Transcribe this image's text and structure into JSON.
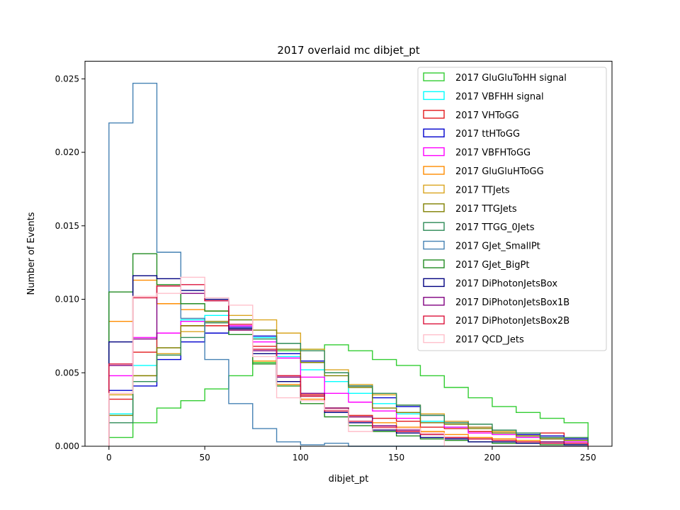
{
  "chart_data": {
    "type": "histogram-step",
    "title": "2017 overlaid mc dibjet_pt",
    "xlabel": "dibjet_pt",
    "ylabel": "Number of Events",
    "xlim": [
      -12.5,
      262.5
    ],
    "ylim": [
      0,
      0.0262
    ],
    "xticks": [
      0,
      50,
      100,
      150,
      200,
      250
    ],
    "yticks": [
      0.0,
      0.005,
      0.01,
      0.015,
      0.02,
      0.025
    ],
    "ytick_labels": [
      "0.000",
      "0.005",
      "0.010",
      "0.015",
      "0.020",
      "0.025"
    ],
    "bin_edges": [
      0,
      12.5,
      25,
      37.5,
      50,
      62.5,
      75,
      87.5,
      100,
      112.5,
      125,
      137.5,
      150,
      162.5,
      175,
      187.5,
      200,
      212.5,
      225,
      237.5,
      250
    ],
    "legend_position": "upper right",
    "series": [
      {
        "name": "2017 GluGluToHH signal",
        "color": "#32cd32",
        "values": [
          0.0006,
          0.0016,
          0.0026,
          0.0031,
          0.0039,
          0.0048,
          0.0057,
          0.0065,
          0.0066,
          0.0069,
          0.0065,
          0.0059,
          0.0055,
          0.0048,
          0.004,
          0.0033,
          0.0027,
          0.0023,
          0.0019,
          0.0016
        ]
      },
      {
        "name": "2017 VBFHH signal",
        "color": "#00ffff",
        "values": [
          0.0022,
          0.0055,
          0.0077,
          0.0086,
          0.0089,
          0.0086,
          0.0074,
          0.0061,
          0.0052,
          0.0044,
          0.0036,
          0.0029,
          0.0022,
          0.0017,
          0.0013,
          0.001,
          0.0008,
          0.0006,
          0.0005,
          0.0004
        ]
      },
      {
        "name": "2017 VHToGG",
        "color": "#e31a1c",
        "values": [
          0.0032,
          0.0064,
          0.0077,
          0.0082,
          0.0082,
          0.008,
          0.0068,
          0.0048,
          0.0035,
          0.0026,
          0.0021,
          0.0019,
          0.0017,
          0.0013,
          0.0012,
          0.001,
          0.0009,
          0.0007,
          0.0009,
          0.0005
        ]
      },
      {
        "name": "2017 ttHToGG",
        "color": "#0000cd",
        "values": [
          0.0038,
          0.0041,
          0.0059,
          0.0071,
          0.0077,
          0.0081,
          0.0075,
          0.0063,
          0.0058,
          0.005,
          0.0041,
          0.0033,
          0.0027,
          0.0021,
          0.0017,
          0.0013,
          0.0011,
          0.0008,
          0.0007,
          0.0005
        ]
      },
      {
        "name": "2017 VBFHToGG",
        "color": "#ff00ff",
        "values": [
          0.0048,
          0.0074,
          0.0077,
          0.0085,
          0.0084,
          0.0082,
          0.0071,
          0.006,
          0.0047,
          0.0036,
          0.003,
          0.0024,
          0.0019,
          0.0016,
          0.0013,
          0.0009,
          0.0008,
          0.0006,
          0.0005,
          0.0003
        ]
      },
      {
        "name": "2017 GluGluHToGG",
        "color": "#ff8c00",
        "values": [
          0.0085,
          0.0113,
          0.0097,
          0.0093,
          0.0092,
          0.0079,
          0.0058,
          0.0042,
          0.0032,
          0.0026,
          0.002,
          0.0016,
          0.0013,
          0.001,
          0.0008,
          0.0006,
          0.0005,
          0.0004,
          0.0003,
          0.0002
        ]
      },
      {
        "name": "2017 TTJets",
        "color": "#daa520",
        "values": [
          0.0035,
          0.0048,
          0.0063,
          0.0078,
          0.0084,
          0.0089,
          0.0086,
          0.0077,
          0.0066,
          0.0052,
          0.0042,
          0.0035,
          0.0028,
          0.0022,
          0.0017,
          0.0013,
          0.001,
          0.0007,
          0.0006,
          0.0004
        ]
      },
      {
        "name": "2017 TTGJets",
        "color": "#808000",
        "values": [
          0.0021,
          0.0048,
          0.0067,
          0.0082,
          0.0085,
          0.0086,
          0.0079,
          0.0066,
          0.0057,
          0.0048,
          0.004,
          0.0026,
          0.0023,
          0.0016,
          0.0015,
          0.0012,
          0.0009,
          0.0007,
          0.0005,
          0.0004
        ]
      },
      {
        "name": "2017 TTGG_0Jets",
        "color": "#2e8b57",
        "values": [
          0.0016,
          0.0044,
          0.0062,
          0.0074,
          0.0084,
          0.008,
          0.0073,
          0.007,
          0.0065,
          0.005,
          0.0041,
          0.0036,
          0.0028,
          0.0021,
          0.0016,
          0.0015,
          0.0011,
          0.0009,
          0.0006,
          0.0006
        ]
      },
      {
        "name": "2017 GJet_SmallPt",
        "color": "#4682b4",
        "values": [
          0.022,
          0.0247,
          0.0132,
          0.0087,
          0.0059,
          0.0029,
          0.0012,
          0.0003,
          0.0001,
          0.0002,
          0.0,
          0.0,
          0.0,
          0.0,
          0.0,
          0.0,
          0.0,
          0.0,
          0.0,
          0.0
        ]
      },
      {
        "name": "2017 GJet_BigPt",
        "color": "#228b22",
        "values": [
          0.0105,
          0.0131,
          0.011,
          0.0097,
          0.0092,
          0.0076,
          0.0056,
          0.0041,
          0.0029,
          0.002,
          0.0014,
          0.001,
          0.0007,
          0.0005,
          0.0004,
          0.0003,
          0.0002,
          0.0002,
          0.0001,
          0.0001
        ]
      },
      {
        "name": "2017 DiPhotonJetsBox",
        "color": "#000080",
        "values": [
          0.0071,
          0.0116,
          0.0114,
          0.0106,
          0.01,
          0.008,
          0.0063,
          0.0044,
          0.0034,
          0.0023,
          0.0016,
          0.0011,
          0.0009,
          0.0006,
          0.0005,
          0.0003,
          0.0003,
          0.0002,
          0.0002,
          0.0001
        ]
      },
      {
        "name": "2017 DiPhotonJetsBox1B",
        "color": "#800080",
        "values": [
          0.0055,
          0.0073,
          0.0109,
          0.0104,
          0.0099,
          0.0079,
          0.0065,
          0.0047,
          0.0036,
          0.0026,
          0.002,
          0.0014,
          0.0011,
          0.0008,
          0.0006,
          0.0005,
          0.0004,
          0.0003,
          0.0003,
          0.0002
        ]
      },
      {
        "name": "2017 DiPhotonJetsBox2B",
        "color": "#dc143c",
        "values": [
          0.0056,
          0.0101,
          0.0109,
          0.011,
          0.0099,
          0.0083,
          0.0066,
          0.0048,
          0.0034,
          0.0024,
          0.0017,
          0.0013,
          0.001,
          0.0008,
          0.0006,
          0.0005,
          0.0004,
          0.0003,
          0.0002,
          0.0002
        ]
      },
      {
        "name": "2017 QCD_Jets",
        "color": "#ffc0cb",
        "values": [
          0.0036,
          0.0102,
          0.0104,
          0.0115,
          0.0101,
          0.0096,
          0.0061,
          0.0033,
          0.0031,
          0.0025,
          0.001,
          0.0012,
          0.0012,
          0.0009,
          0.0,
          0.0,
          0.0,
          0.0,
          0.0,
          0.0
        ]
      }
    ]
  }
}
